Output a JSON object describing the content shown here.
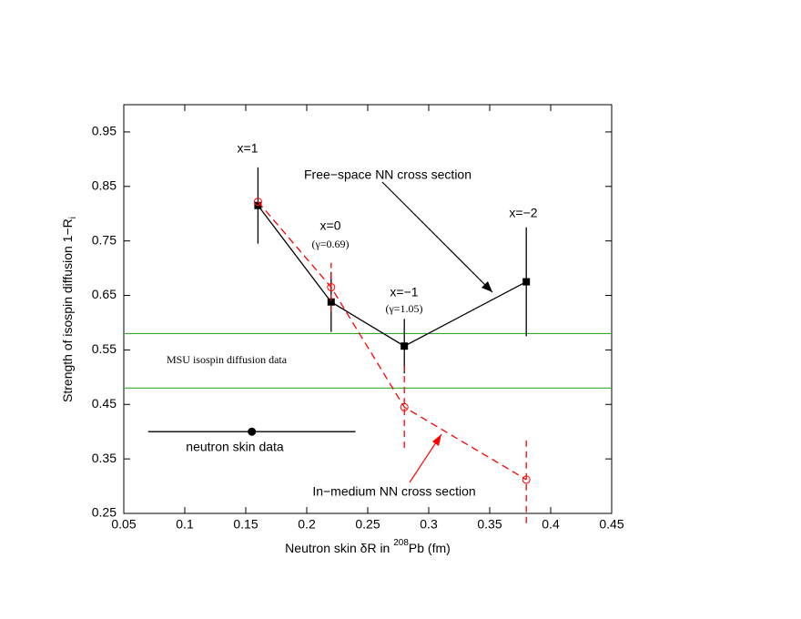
{
  "chart_data": {
    "type": "scatter",
    "xlabel": [
      "Neutron skin δR in ",
      "208",
      "Pb (fm)"
    ],
    "ylabel": [
      "Strength of isospin diffusion 1−R",
      "i"
    ],
    "xlim": [
      0.05,
      0.45
    ],
    "ylim": [
      0.25,
      1.0
    ],
    "xticks": [
      0.05,
      0.1,
      0.15,
      0.2,
      0.25,
      0.3,
      0.35,
      0.4,
      0.45
    ],
    "yticks": [
      0.25,
      0.35,
      0.45,
      0.55,
      0.65,
      0.75,
      0.85,
      0.95
    ],
    "series": [
      {
        "name": "Free−space NN cross section",
        "color": "#000000",
        "line": "solid",
        "marker": "square",
        "x": [
          0.16,
          0.22,
          0.28,
          0.38
        ],
        "values": [
          0.815,
          0.638,
          0.557,
          0.675
        ],
        "errors": [
          0.07,
          0.055,
          0.05,
          0.1
        ]
      },
      {
        "name": "In−medium NN cross section",
        "color": "#ff0000",
        "line": "dashed",
        "marker": "open-circle",
        "x": [
          0.16,
          0.22,
          0.28,
          0.38
        ],
        "values": [
          0.822,
          0.665,
          0.445,
          0.312
        ],
        "errors": [
          null,
          0.045,
          0.075,
          0.08
        ]
      },
      {
        "name": "neutron skin data",
        "color": "#000000",
        "line": "none",
        "marker": "circle",
        "x": [
          0.155
        ],
        "values": [
          0.4
        ],
        "xerrors": [
          0.085
        ]
      }
    ],
    "band": {
      "name": "MSU isospin diffusion data",
      "color": "#33aa33",
      "values": [
        0.48,
        0.58
      ]
    },
    "annotations": [
      "x=1",
      "x=0",
      "(γ=0.69)",
      "x=−1",
      "(γ=1.05)",
      "x=−2"
    ]
  }
}
